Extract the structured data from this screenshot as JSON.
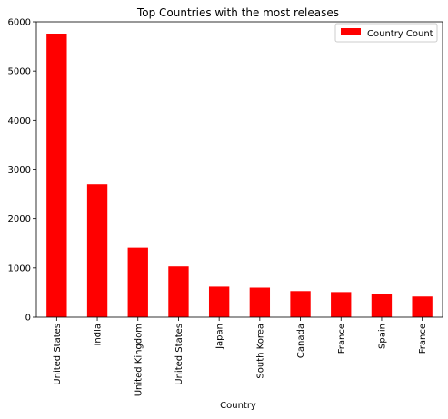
{
  "chart_data": {
    "type": "bar",
    "title": "Top Countries with the most releases",
    "xlabel": "Country",
    "ylabel": "",
    "categories": [
      "United States",
      "India",
      "United Kingdom",
      "United States",
      "Japan",
      "South Korea",
      "Canada",
      "France",
      "Spain",
      "France"
    ],
    "series": [
      {
        "name": "Country Count",
        "values": [
          5760,
          2710,
          1410,
          1030,
          620,
          600,
          530,
          510,
          470,
          420
        ],
        "color": "#ff0000"
      }
    ],
    "ylim": [
      0,
      6000
    ],
    "yticks": [
      0,
      1000,
      2000,
      3000,
      4000,
      5000,
      6000
    ],
    "ytick_labels": [
      "0",
      "1000",
      "2000",
      "3000",
      "4000",
      "5000",
      "6000"
    ],
    "grid": false,
    "legend_position": "top-right"
  }
}
